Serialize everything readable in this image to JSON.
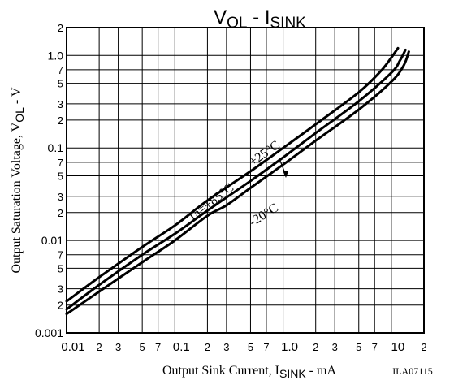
{
  "chart_data": {
    "type": "line",
    "title_main": "V",
    "title_main_sub": "OL",
    "title_sep": " - ",
    "title_second": "I",
    "title_second_sub": "SINK",
    "x_scale": "log",
    "y_scale": "log",
    "xlim": [
      0.01,
      20
    ],
    "ylim": [
      0.001,
      2
    ],
    "grid": true,
    "xlabel_pre": "Output Sink Current, I",
    "xlabel_sub": "SINK",
    "xlabel_post": " - mA",
    "ylabel_pre": "Output Saturation Voltage, V",
    "ylabel_sub": "OL",
    "ylabel_post": " - V",
    "x_ticks": [
      {
        "v": 0.01,
        "t": "0.01"
      },
      {
        "v": 0.02,
        "t": "2"
      },
      {
        "v": 0.03,
        "t": "3"
      },
      {
        "v": 0.05,
        "t": "5"
      },
      {
        "v": 0.07,
        "t": "7"
      },
      {
        "v": 0.1,
        "t": "0.1"
      },
      {
        "v": 0.2,
        "t": "2"
      },
      {
        "v": 0.3,
        "t": "3"
      },
      {
        "v": 0.5,
        "t": "5"
      },
      {
        "v": 0.7,
        "t": "7"
      },
      {
        "v": 1,
        "t": "1.0"
      },
      {
        "v": 2,
        "t": "2"
      },
      {
        "v": 3,
        "t": "3"
      },
      {
        "v": 5,
        "t": "5"
      },
      {
        "v": 7,
        "t": "7"
      },
      {
        "v": 10,
        "t": "10"
      },
      {
        "v": 20,
        "t": "2"
      }
    ],
    "y_ticks": [
      {
        "v": 0.001,
        "t": "0.001"
      },
      {
        "v": 0.002,
        "t": "2"
      },
      {
        "v": 0.003,
        "t": "3"
      },
      {
        "v": 0.005,
        "t": "5"
      },
      {
        "v": 0.007,
        "t": "7"
      },
      {
        "v": 0.01,
        "t": "0.01"
      },
      {
        "v": 0.02,
        "t": "2"
      },
      {
        "v": 0.03,
        "t": "3"
      },
      {
        "v": 0.05,
        "t": "5"
      },
      {
        "v": 0.07,
        "t": "7"
      },
      {
        "v": 0.1,
        "t": "0.1"
      },
      {
        "v": 0.2,
        "t": "2"
      },
      {
        "v": 0.3,
        "t": "3"
      },
      {
        "v": 0.5,
        "t": "5"
      },
      {
        "v": 0.7,
        "t": "7"
      },
      {
        "v": 1,
        "t": "1.0"
      },
      {
        "v": 2,
        "t": "2"
      }
    ],
    "series": [
      {
        "name": "+85°C",
        "x": [
          0.01,
          0.02,
          0.05,
          0.1,
          0.2,
          0.5,
          1,
          2,
          5,
          8,
          10,
          11.5
        ],
        "y": [
          0.0022,
          0.004,
          0.0085,
          0.0145,
          0.027,
          0.056,
          0.1,
          0.18,
          0.4,
          0.68,
          0.95,
          1.2
        ]
      },
      {
        "name": "+25°C",
        "x": [
          0.01,
          0.02,
          0.05,
          0.1,
          0.2,
          0.5,
          1,
          2,
          5,
          10,
          12,
          13.5
        ],
        "y": [
          0.0018,
          0.0033,
          0.007,
          0.0118,
          0.021,
          0.044,
          0.079,
          0.145,
          0.32,
          0.65,
          0.88,
          1.15
        ]
      },
      {
        "name": "-20°C",
        "x": [
          0.01,
          0.02,
          0.05,
          0.1,
          0.2,
          0.3,
          0.5,
          1,
          2,
          5,
          10,
          13,
          14.5
        ],
        "y": [
          0.0016,
          0.0028,
          0.0058,
          0.01,
          0.0185,
          0.024,
          0.037,
          0.066,
          0.12,
          0.26,
          0.52,
          0.78,
          1.1
        ]
      }
    ],
    "annotations": {
      "ta_label": "Ta=+85°C",
      "room_label": "+25°C",
      "cold_label": "-20°C",
      "code": "ILA07115"
    }
  }
}
